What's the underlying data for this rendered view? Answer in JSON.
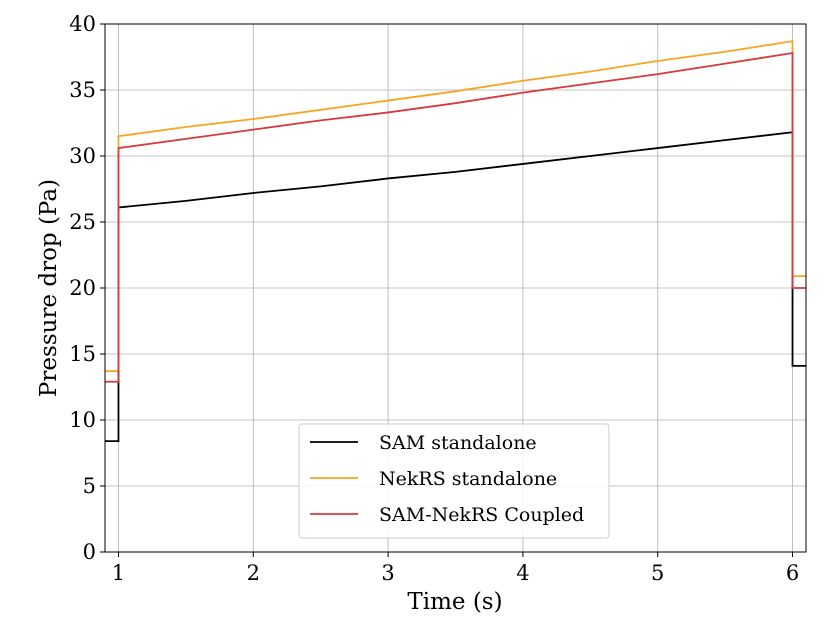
{
  "chart_data": {
    "type": "line",
    "title": "",
    "xlabel": "Time (s)",
    "ylabel": "Pressure drop (Pa)",
    "xlim": [
      0.9,
      6.1
    ],
    "ylim": [
      0,
      40
    ],
    "xticks": [
      1,
      2,
      3,
      4,
      5,
      6
    ],
    "yticks": [
      0,
      5,
      10,
      15,
      20,
      25,
      30,
      35,
      40
    ],
    "xtick_labels": [
      "1",
      "2",
      "3",
      "4",
      "5",
      "6"
    ],
    "ytick_labels": [
      "0",
      "5",
      "10",
      "15",
      "20",
      "25",
      "30",
      "35",
      "40"
    ],
    "grid": true,
    "legend_position": "bottom-center",
    "series": [
      {
        "name": "SAM standalone",
        "color": "#000000",
        "points": [
          [
            0.9,
            8.4
          ],
          [
            1.0,
            8.4
          ],
          [
            1.0,
            12.9
          ],
          [
            1.0,
            26.1
          ],
          [
            1.5,
            26.6
          ],
          [
            2.0,
            27.2
          ],
          [
            2.5,
            27.7
          ],
          [
            3.0,
            28.3
          ],
          [
            3.5,
            28.8
          ],
          [
            4.0,
            29.4
          ],
          [
            4.5,
            30.0
          ],
          [
            5.0,
            30.6
          ],
          [
            5.5,
            31.2
          ],
          [
            6.0,
            31.8
          ],
          [
            6.0,
            20.0
          ],
          [
            6.0,
            14.1
          ],
          [
            6.1,
            14.1
          ]
        ]
      },
      {
        "name": "NekRS standalone",
        "color": "#f5a623",
        "points": [
          [
            0.9,
            13.7
          ],
          [
            1.0,
            13.7
          ],
          [
            1.0,
            31.5
          ],
          [
            1.5,
            32.2
          ],
          [
            2.0,
            32.8
          ],
          [
            2.5,
            33.5
          ],
          [
            3.0,
            34.2
          ],
          [
            3.5,
            34.9
          ],
          [
            4.0,
            35.7
          ],
          [
            4.5,
            36.4
          ],
          [
            5.0,
            37.2
          ],
          [
            5.5,
            37.9
          ],
          [
            6.0,
            38.7
          ],
          [
            6.0,
            20.9
          ],
          [
            6.1,
            20.9
          ]
        ]
      },
      {
        "name": "SAM-NekRS Coupled",
        "color": "#d9393b",
        "points": [
          [
            0.9,
            12.9
          ],
          [
            1.0,
            12.9
          ],
          [
            1.0,
            30.6
          ],
          [
            1.5,
            31.3
          ],
          [
            2.0,
            32.0
          ],
          [
            2.5,
            32.7
          ],
          [
            3.0,
            33.3
          ],
          [
            3.5,
            34.0
          ],
          [
            4.0,
            34.8
          ],
          [
            4.5,
            35.5
          ],
          [
            5.0,
            36.2
          ],
          [
            5.5,
            37.0
          ],
          [
            6.0,
            37.8
          ],
          [
            6.0,
            20.0
          ],
          [
            6.1,
            20.0
          ]
        ]
      }
    ]
  }
}
